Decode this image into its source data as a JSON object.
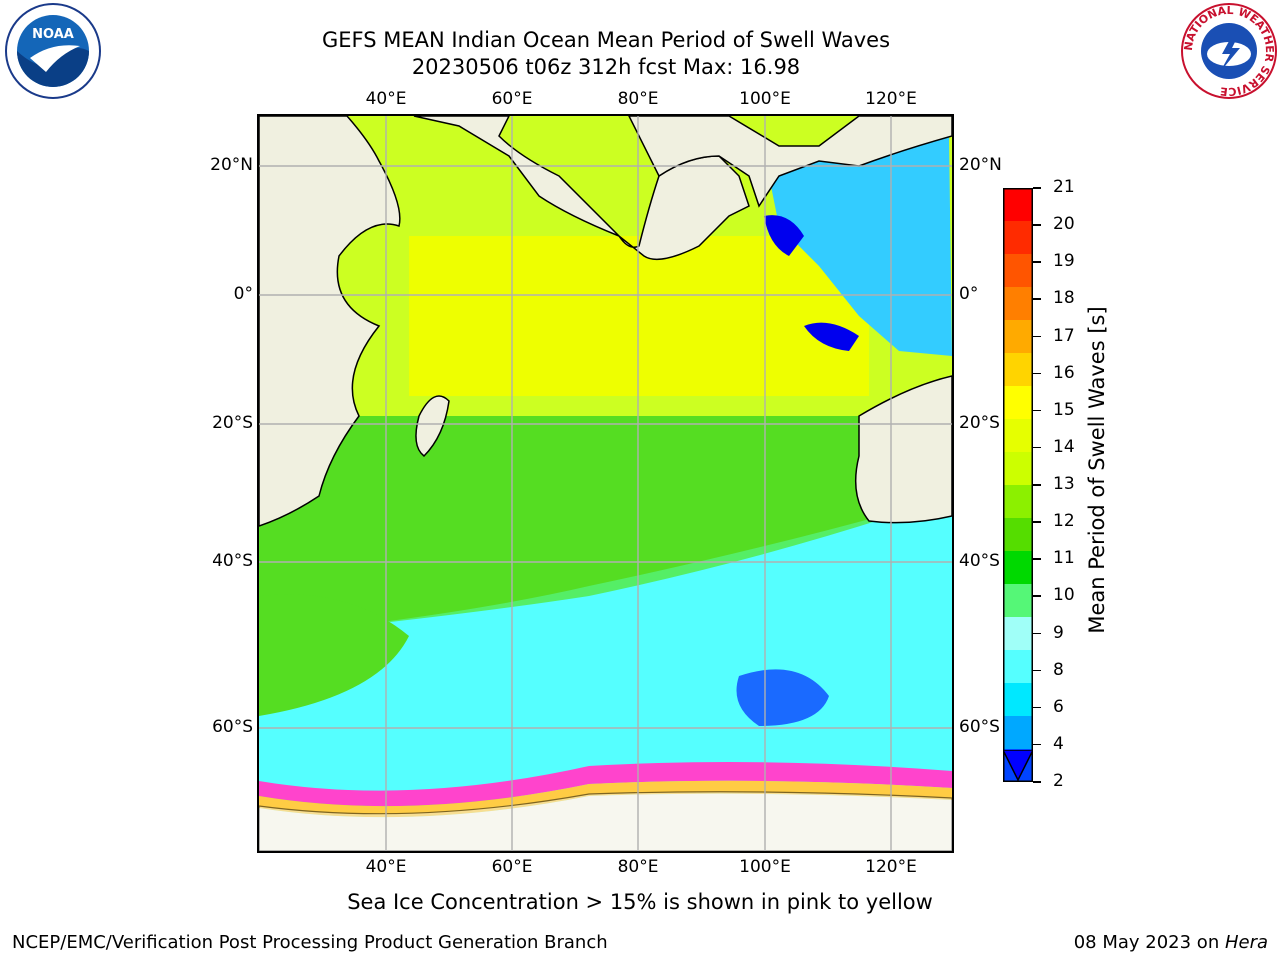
{
  "header": {
    "title_line1": "GEFS MEAN Indian Ocean Mean Period of Swell Waves",
    "title_line2": "20230506 t06z 312h fcst   Max: 16.98"
  },
  "logos": {
    "left": "NOAA",
    "right": "NATIONAL WEATHER SERVICE"
  },
  "map": {
    "longitude_ticks": [
      "40°E",
      "60°E",
      "80°E",
      "100°E",
      "120°E"
    ],
    "latitude_ticks": [
      "20°N",
      "0°",
      "20°S",
      "40°S",
      "60°S"
    ],
    "lon_range": [
      20,
      130
    ],
    "lat_range": [
      -77,
      27
    ],
    "ice_note": "Sea Ice Concentration > 15% is shown in pink to yellow"
  },
  "colorbar": {
    "label": "Mean Period of Swell Waves [s]",
    "ticks": [
      "21",
      "20",
      "19",
      "18",
      "17",
      "16",
      "15",
      "14",
      "13",
      "12",
      "11",
      "10",
      "9",
      "8",
      "6",
      "4",
      "2"
    ],
    "colors": [
      "#ff0000",
      "#ff2b00",
      "#ff5500",
      "#ff7f00",
      "#ffaa00",
      "#ffd400",
      "#ffff00",
      "#e6ff00",
      "#ccff00",
      "#8cf000",
      "#55dd00",
      "#00d900",
      "#55f777",
      "#a0fff8",
      "#55ffff",
      "#00e8ff",
      "#00a8ff",
      "#0044ff"
    ],
    "extend_color": "#0000ff"
  },
  "footer": {
    "left": "NCEP/EMC/Verification Post Processing Product Generation Branch",
    "right_date": "08 May 2023 on ",
    "right_host": "Hera"
  }
}
